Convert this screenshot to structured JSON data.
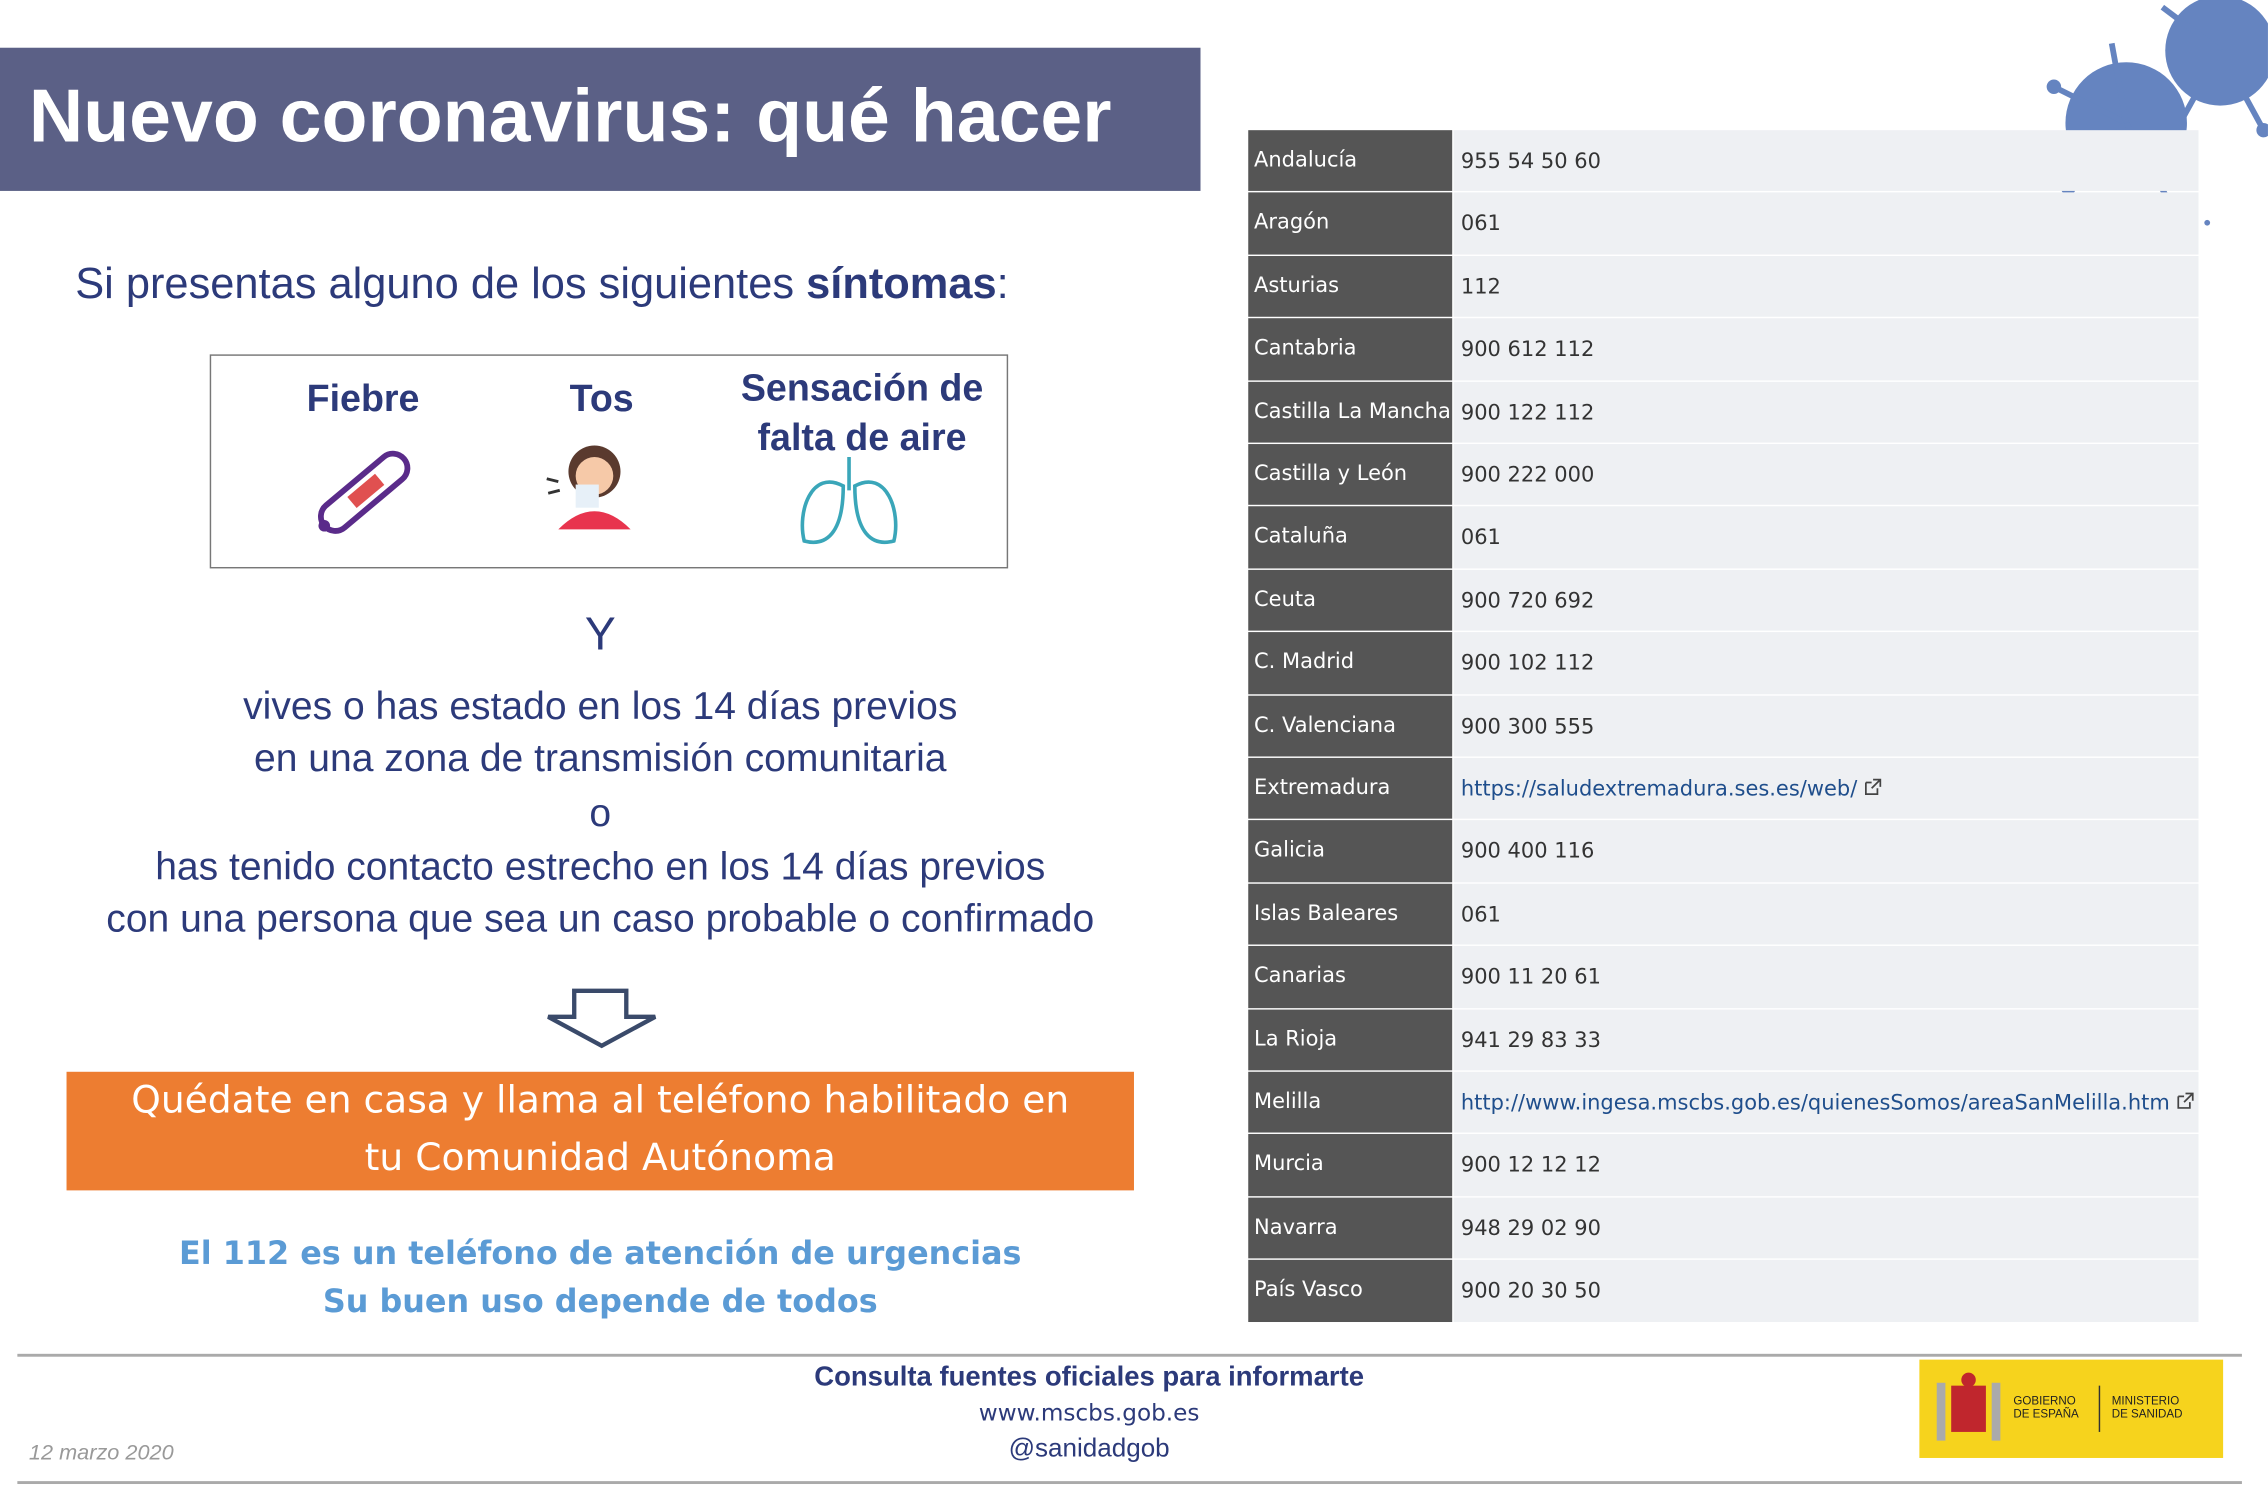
{
  "header": {
    "title": "Nuevo coronavirus: qué hacer"
  },
  "intro": {
    "before": "Si presentas alguno de los siguientes",
    "emphasis": "síntomas",
    "after": ":"
  },
  "symptoms": [
    "Fiebre",
    "Tos",
    "Sensación de falta de aire"
  ],
  "conjunction": "Y",
  "conditions": {
    "first": [
      "vives o has estado en los 14 días previos",
      "en una zona de transmisión comunitaria"
    ],
    "or": "o",
    "second": [
      "has tenido contacto estrecho en los 14 días previos",
      "con una persona que sea un caso probable o confirmado"
    ]
  },
  "action": [
    "Quédate en casa y llama al teléfono habilitado en",
    "tu Comunidad Autónoma"
  ],
  "note": [
    "El 112 es un teléfono de atención de urgencias",
    "Su buen uso depende de todos"
  ],
  "table": {
    "rows": [
      [
        "Andalucía",
        "955 54 50 60"
      ],
      [
        "Aragón",
        "061"
      ],
      [
        "Asturias",
        "112"
      ],
      [
        "Cantabria",
        "900 612 112"
      ],
      [
        "Castilla La Mancha",
        "900 122 112"
      ],
      [
        "Castilla y León",
        "900 222 000"
      ],
      [
        "Cataluña",
        "061"
      ],
      [
        "Ceuta",
        "900 720 692"
      ],
      [
        "C. Madrid",
        "900 102 112"
      ],
      [
        "C. Valenciana",
        "900 300 555"
      ],
      [
        "Extremadura",
        "https://saludextremadura.ses.es/web/"
      ],
      [
        "Galicia",
        "900 400 116"
      ],
      [
        "Islas Baleares",
        "061"
      ],
      [
        "Canarias",
        "900 11 20 61"
      ],
      [
        "La Rioja",
        "941 29 83 33"
      ],
      [
        "Melilla",
        "http://www.ingesa.mscbs.gob.es/quienesSomos/areaSanMelilla.htm"
      ],
      [
        "Murcia",
        "900 12 12 12"
      ],
      [
        "Navarra",
        "948 29 02 90"
      ],
      [
        "País Vasco",
        "900 20 30 50"
      ]
    ]
  },
  "footer": {
    "heading": "Consulta fuentes oficiales para informarte",
    "web": "www.mscbs.gob.es",
    "social": "@sanidadgob",
    "date": "12 marzo 2020",
    "logo": [
      "GOBIERNO",
      "DE ESPAÑA",
      "MINISTERIO",
      "DE SANIDAD"
    ]
  }
}
